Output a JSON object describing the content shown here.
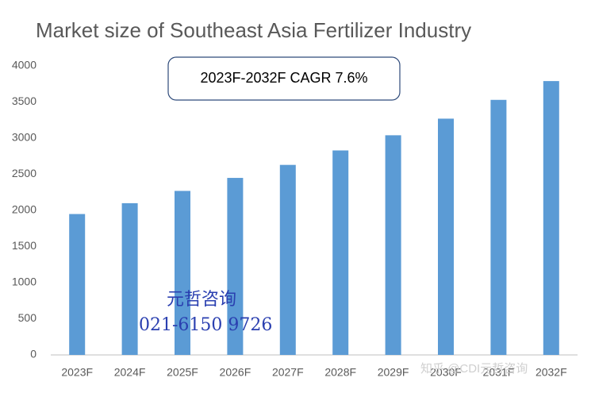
{
  "chart_data": {
    "type": "bar",
    "title": "Market size of Southeast Asia Fertilizer Industry",
    "categories": [
      "2023F",
      "2024F",
      "2025F",
      "2026F",
      "2027F",
      "2028F",
      "2029F",
      "2030F",
      "2031F",
      "2032F"
    ],
    "values": [
      1950,
      2100,
      2270,
      2450,
      2630,
      2830,
      3040,
      3270,
      3530,
      3790
    ],
    "color": "#5b9bd5",
    "ylim": [
      0,
      4000
    ],
    "yticks": [
      0,
      500,
      1000,
      1500,
      2000,
      2500,
      3000,
      3500,
      4000
    ],
    "grid": false,
    "annotations": [
      "2023F-2032F  CAGR 7.6%",
      "元哲咨询",
      "021-6150  9726",
      "知乎 @CDI元哲咨询"
    ]
  }
}
